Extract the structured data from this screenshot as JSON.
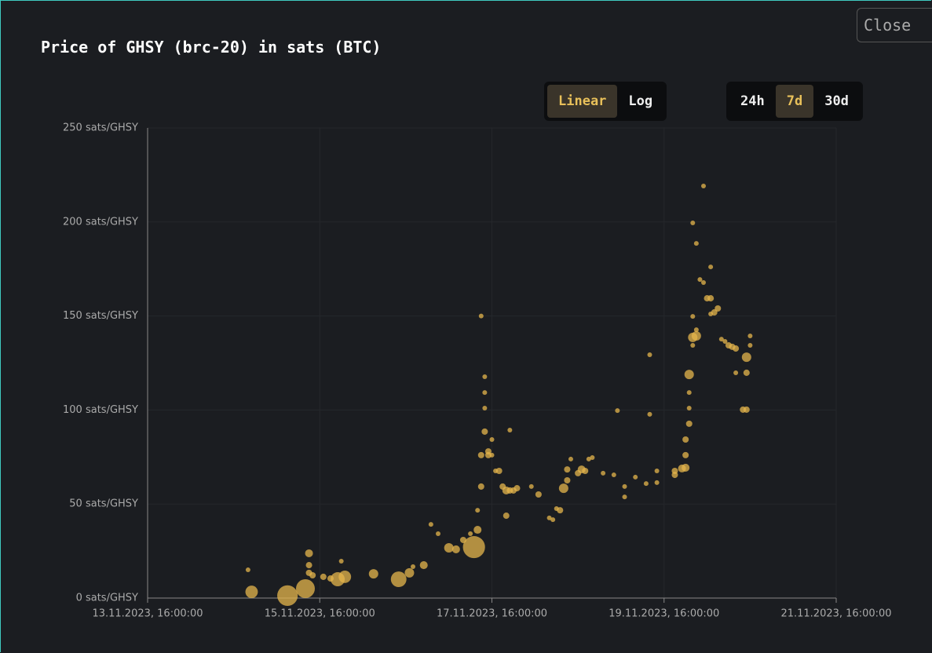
{
  "ui": {
    "close": "Close",
    "scale_buttons": [
      "Linear",
      "Log"
    ],
    "range_buttons": [
      "24h",
      "7d",
      "30d"
    ],
    "selected_range": "7d"
  },
  "chart_data": {
    "type": "scatter",
    "title": "Price of GHSY (brc-20) in sats (BTC)",
    "log_scale": false,
    "grid": true,
    "color": "#e6b54c",
    "xlim": [
      "2023-11-13T16:00",
      "2023-11-21T16:00"
    ],
    "xticks": [
      {
        "value": "2023-11-13T16:00",
        "label": "13.11.2023, 16:00:00"
      },
      {
        "value": "2023-11-15T16:00",
        "label": "15.11.2023, 16:00:00"
      },
      {
        "value": "2023-11-17T16:00",
        "label": "17.11.2023, 16:00:00"
      },
      {
        "value": "2023-11-19T16:00",
        "label": "19.11.2023, 16:00:00"
      },
      {
        "value": "2023-11-21T16:00",
        "label": "21.11.2023, 16:00:00"
      }
    ],
    "ylim": [
      0,
      250
    ],
    "yticks": [
      {
        "value": 0,
        "label": "0 sats/GHSY"
      },
      {
        "value": 50,
        "label": "50 sats/GHSY"
      },
      {
        "value": 100,
        "label": "100 sats/GHSY"
      },
      {
        "value": 150,
        "label": "150 sats/GHSY"
      },
      {
        "value": 200,
        "label": "200 sats/GHSY"
      },
      {
        "value": 250,
        "label": "250 sats/GHSY"
      }
    ],
    "x": [
      "2023-11-14T20:00",
      "2023-11-14T21:00",
      "2023-11-15T07:00",
      "2023-11-15T12:00",
      "2023-11-15T13:00",
      "2023-11-15T13:00",
      "2023-11-15T13:00",
      "2023-11-15T14:00",
      "2023-11-15T17:00",
      "2023-11-15T19:00",
      "2023-11-15T21:00",
      "2023-11-15T23:00",
      "2023-11-15T22:00",
      "2023-11-16T07:00",
      "2023-11-16T14:00",
      "2023-11-16T17:00",
      "2023-11-16T18:00",
      "2023-11-16T21:00",
      "2023-11-16T23:00",
      "2023-11-17T01:00",
      "2023-11-17T04:00",
      "2023-11-17T06:00",
      "2023-11-17T08:00",
      "2023-11-17T10:00",
      "2023-11-17T11:00",
      "2023-11-17T12:00",
      "2023-11-17T12:00",
      "2023-11-17T13:00",
      "2023-11-17T13:00",
      "2023-11-17T13:00",
      "2023-11-17T14:00",
      "2023-11-17T14:00",
      "2023-11-17T14:00",
      "2023-11-17T14:00",
      "2023-11-17T15:00",
      "2023-11-17T15:00",
      "2023-11-17T16:00",
      "2023-11-17T16:00",
      "2023-11-17T17:00",
      "2023-11-17T21:00",
      "2023-11-17T18:00",
      "2023-11-17T19:00",
      "2023-11-17T20:00",
      "2023-11-17T21:00",
      "2023-11-17T22:00",
      "2023-11-17T23:00",
      "2023-11-17T20:00",
      "2023-11-18T03:00",
      "2023-11-18T05:00",
      "2023-11-18T08:00",
      "2023-11-18T09:00",
      "2023-11-18T10:00",
      "2023-11-18T11:00",
      "2023-11-18T12:00",
      "2023-11-18T13:00",
      "2023-11-18T13:00",
      "2023-11-18T14:00",
      "2023-11-18T16:00",
      "2023-11-18T17:00",
      "2023-11-18T18:00",
      "2023-11-18T19:00",
      "2023-11-18T20:00",
      "2023-11-18T23:00",
      "2023-11-19T02:00",
      "2023-11-19T03:00",
      "2023-11-19T05:00",
      "2023-11-19T05:00",
      "2023-11-19T08:00",
      "2023-11-19T11:00",
      "2023-11-19T12:00",
      "2023-11-19T12:00",
      "2023-11-19T14:00",
      "2023-11-19T14:00",
      "2023-11-19T19:00",
      "2023-11-19T19:00",
      "2023-11-19T21:00",
      "2023-11-19T22:00",
      "2023-11-19T22:00",
      "2023-11-19T22:00",
      "2023-11-19T23:00",
      "2023-11-19T23:00",
      "2023-11-19T23:00",
      "2023-11-19T23:00",
      "2023-11-20T00:00",
      "2023-11-20T00:00",
      "2023-11-20T01:00",
      "2023-11-20T01:00",
      "2023-11-20T00:00",
      "2023-11-20T00:00",
      "2023-11-20T01:00",
      "2023-11-20T02:00",
      "2023-11-20T03:00",
      "2023-11-20T03:00",
      "2023-11-20T04:00",
      "2023-11-20T05:00",
      "2023-11-20T05:00",
      "2023-11-20T05:00",
      "2023-11-20T06:00",
      "2023-11-20T07:00",
      "2023-11-20T08:00",
      "2023-11-20T09:00",
      "2023-11-20T10:00",
      "2023-11-20T11:00",
      "2023-11-20T12:00",
      "2023-11-20T12:00",
      "2023-11-20T14:00",
      "2023-11-20T15:00",
      "2023-11-20T15:00",
      "2023-11-20T15:00",
      "2023-11-20T16:00",
      "2023-11-20T16:00"
    ],
    "values": [
      15,
      3.3,
      1.3,
      5,
      23.8,
      17.5,
      13.4,
      12.1,
      11.3,
      10.4,
      10,
      11.3,
      19.6,
      12.9,
      10,
      13.4,
      16.7,
      17.5,
      39.2,
      34.2,
      26.7,
      25.9,
      30.9,
      34.2,
      27.1,
      36.3,
      46.7,
      59.3,
      76,
      150,
      117.7,
      109.3,
      101,
      88.5,
      76,
      78,
      84.3,
      76,
      67.6,
      89.3,
      67.6,
      59.3,
      57.2,
      57.2,
      57.2,
      58.4,
      43.8,
      59.3,
      55.1,
      42.6,
      41.7,
      47.6,
      46.7,
      58.4,
      62.6,
      68.4,
      73.9,
      66.4,
      68.4,
      67.6,
      73.9,
      74.7,
      66.4,
      65.5,
      99.7,
      59.3,
      53.8,
      64.3,
      60.9,
      129.4,
      97.7,
      61.4,
      67.6,
      65.5,
      67.6,
      68.9,
      69.3,
      76,
      84.3,
      92.7,
      101,
      109.3,
      118.9,
      134.4,
      138.6,
      139.4,
      142.7,
      149.8,
      199.5,
      188.6,
      169.4,
      219.1,
      167.8,
      159.4,
      159.4,
      176.1,
      151.1,
      151.9,
      154,
      137.7,
      136.5,
      134.4,
      133.6,
      132.7,
      119.8,
      100.2,
      100.2,
      119.8,
      128.1,
      139.4,
      134.4
    ],
    "sizes": [
      1,
      7,
      19,
      16,
      2.8,
      1.8,
      1.8,
      1.8,
      1.8,
      1.8,
      9,
      7,
      1,
      4,
      11,
      4,
      1,
      2.8,
      1,
      1,
      4,
      2.8,
      1.8,
      1,
      22,
      2.8,
      1,
      1.8,
      1.8,
      1,
      1,
      1,
      1,
      1.8,
      1.8,
      1.8,
      1,
      1,
      1,
      1,
      1.8,
      1.8,
      2.8,
      1.8,
      1.8,
      1.8,
      1.8,
      1,
      1.8,
      1,
      1,
      1,
      1.8,
      4,
      1.8,
      1.8,
      1,
      1.8,
      2.8,
      1.8,
      1,
      1,
      1,
      1,
      1,
      1,
      1,
      1,
      1,
      1,
      1,
      1,
      1,
      1.8,
      1.8,
      2.8,
      2.8,
      1.8,
      1.8,
      1.8,
      1,
      1,
      4,
      1,
      4,
      4,
      1,
      1,
      1,
      1,
      1,
      1,
      1,
      1.8,
      1.8,
      1,
      1,
      1.8,
      1.8,
      1,
      1,
      1.8,
      1.8,
      1.8,
      1,
      1.8,
      1.8,
      1.8,
      4,
      1,
      1
    ]
  }
}
